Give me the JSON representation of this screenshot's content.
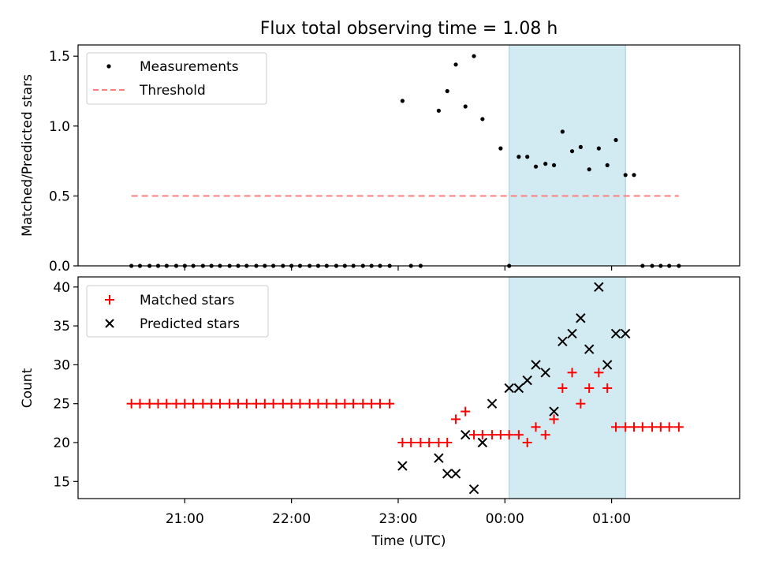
{
  "title": "Flux total observing time = 1.08 h",
  "xlabel": "Time (UTC)",
  "x_ticks": [
    {
      "value": 21.0,
      "label": "21:00"
    },
    {
      "value": 22.0,
      "label": "22:00"
    },
    {
      "value": 23.0,
      "label": "23:00"
    },
    {
      "value": 24.0,
      "label": "00:00"
    },
    {
      "value": 25.0,
      "label": "01:00"
    }
  ],
  "x_range_hours": [
    20.0,
    26.2
  ],
  "x_unit_note": "hours UTC; values >= 24 are past midnight",
  "highlight_span": {
    "x": [
      24.04,
      25.13
    ],
    "color": "#add8e6"
  },
  "chart_data": [
    {
      "type": "scatter",
      "ylabel": "Matched/Predicted stars",
      "ylim": [
        0,
        1.58
      ],
      "y_ticks": [
        0.0,
        0.5,
        1.0,
        1.5
      ],
      "y_tick_labels": [
        "0.0",
        "0.5",
        "1.0",
        "1.5"
      ],
      "legend_position": "top-left",
      "series": [
        {
          "name": "Measurements",
          "kind": "points",
          "color": "#000000",
          "x": [
            20.5,
            20.58,
            20.67,
            20.75,
            20.83,
            20.92,
            21.0,
            21.08,
            21.17,
            21.25,
            21.33,
            21.42,
            21.5,
            21.58,
            21.67,
            21.75,
            21.83,
            21.92,
            22.0,
            22.08,
            22.17,
            22.25,
            22.33,
            22.42,
            22.5,
            22.58,
            22.67,
            22.75,
            22.83,
            22.92,
            23.04,
            23.12,
            23.21,
            23.38,
            23.46,
            23.54,
            23.63,
            23.71,
            23.79,
            23.96,
            24.04,
            24.13,
            24.21,
            24.29,
            24.38,
            24.46,
            24.54,
            24.63,
            24.71,
            24.79,
            24.88,
            24.96,
            25.04,
            25.13,
            25.21,
            25.29,
            25.38,
            25.46,
            25.54,
            25.63
          ],
          "y": [
            0,
            0,
            0,
            0,
            0,
            0,
            0,
            0,
            0,
            0,
            0,
            0,
            0,
            0,
            0,
            0,
            0,
            0,
            0,
            0,
            0,
            0,
            0,
            0,
            0,
            0,
            0,
            0,
            0,
            0,
            1.18,
            0,
            0,
            1.11,
            1.25,
            1.44,
            1.14,
            1.5,
            1.05,
            0.84,
            0,
            0.78,
            0.78,
            0.71,
            0.73,
            0.72,
            0.96,
            0.82,
            0.85,
            0.69,
            0.84,
            0.72,
            0.9,
            0.65,
            0.65,
            0,
            0,
            0,
            0,
            0
          ]
        },
        {
          "name": "Threshold",
          "kind": "dashed-line",
          "color": "#ff7f7f",
          "x": [
            20.5,
            25.63
          ],
          "y": [
            0.5,
            0.5
          ]
        }
      ]
    },
    {
      "type": "scatter",
      "ylabel": "Count",
      "ylim": [
        12.8,
        41.3
      ],
      "y_ticks": [
        15,
        20,
        25,
        30,
        35,
        40
      ],
      "y_tick_labels": [
        "15",
        "20",
        "25",
        "30",
        "35",
        "40"
      ],
      "legend_position": "top-left",
      "series": [
        {
          "name": "Matched stars",
          "marker": "plus",
          "color": "#ff0000",
          "x": [
            20.5,
            20.58,
            20.67,
            20.75,
            20.83,
            20.92,
            21.0,
            21.08,
            21.17,
            21.25,
            21.33,
            21.42,
            21.5,
            21.58,
            21.67,
            21.75,
            21.83,
            21.92,
            22.0,
            22.08,
            22.17,
            22.25,
            22.33,
            22.42,
            22.5,
            22.58,
            22.67,
            22.75,
            22.83,
            22.92,
            23.04,
            23.12,
            23.21,
            23.29,
            23.38,
            23.46,
            23.54,
            23.63,
            23.71,
            23.79,
            23.88,
            23.96,
            24.04,
            24.13,
            24.21,
            24.29,
            24.38,
            24.46,
            24.54,
            24.63,
            24.71,
            24.79,
            24.88,
            24.96,
            25.04,
            25.13,
            25.21,
            25.29,
            25.38,
            25.46,
            25.54,
            25.63
          ],
          "y": [
            25,
            25,
            25,
            25,
            25,
            25,
            25,
            25,
            25,
            25,
            25,
            25,
            25,
            25,
            25,
            25,
            25,
            25,
            25,
            25,
            25,
            25,
            25,
            25,
            25,
            25,
            25,
            25,
            25,
            25,
            20,
            20,
            20,
            20,
            20,
            20,
            23,
            24,
            21,
            21,
            21,
            21,
            21,
            21,
            20,
            22,
            21,
            23,
            27,
            29,
            25,
            27,
            29,
            27,
            22,
            22,
            22,
            22,
            22,
            22,
            22,
            22
          ]
        },
        {
          "name": "Predicted stars",
          "marker": "x",
          "color": "#000000",
          "x": [
            23.04,
            23.38,
            23.46,
            23.54,
            23.63,
            23.71,
            23.79,
            23.88,
            24.04,
            24.13,
            24.21,
            24.29,
            24.38,
            24.46,
            24.54,
            24.63,
            24.71,
            24.79,
            24.88,
            24.96,
            25.04,
            25.13
          ],
          "y": [
            17,
            18,
            16,
            16,
            21,
            14,
            20,
            25,
            27,
            27,
            28,
            30,
            29,
            24,
            33,
            34,
            36,
            32,
            40,
            30,
            34,
            34
          ]
        }
      ]
    }
  ]
}
